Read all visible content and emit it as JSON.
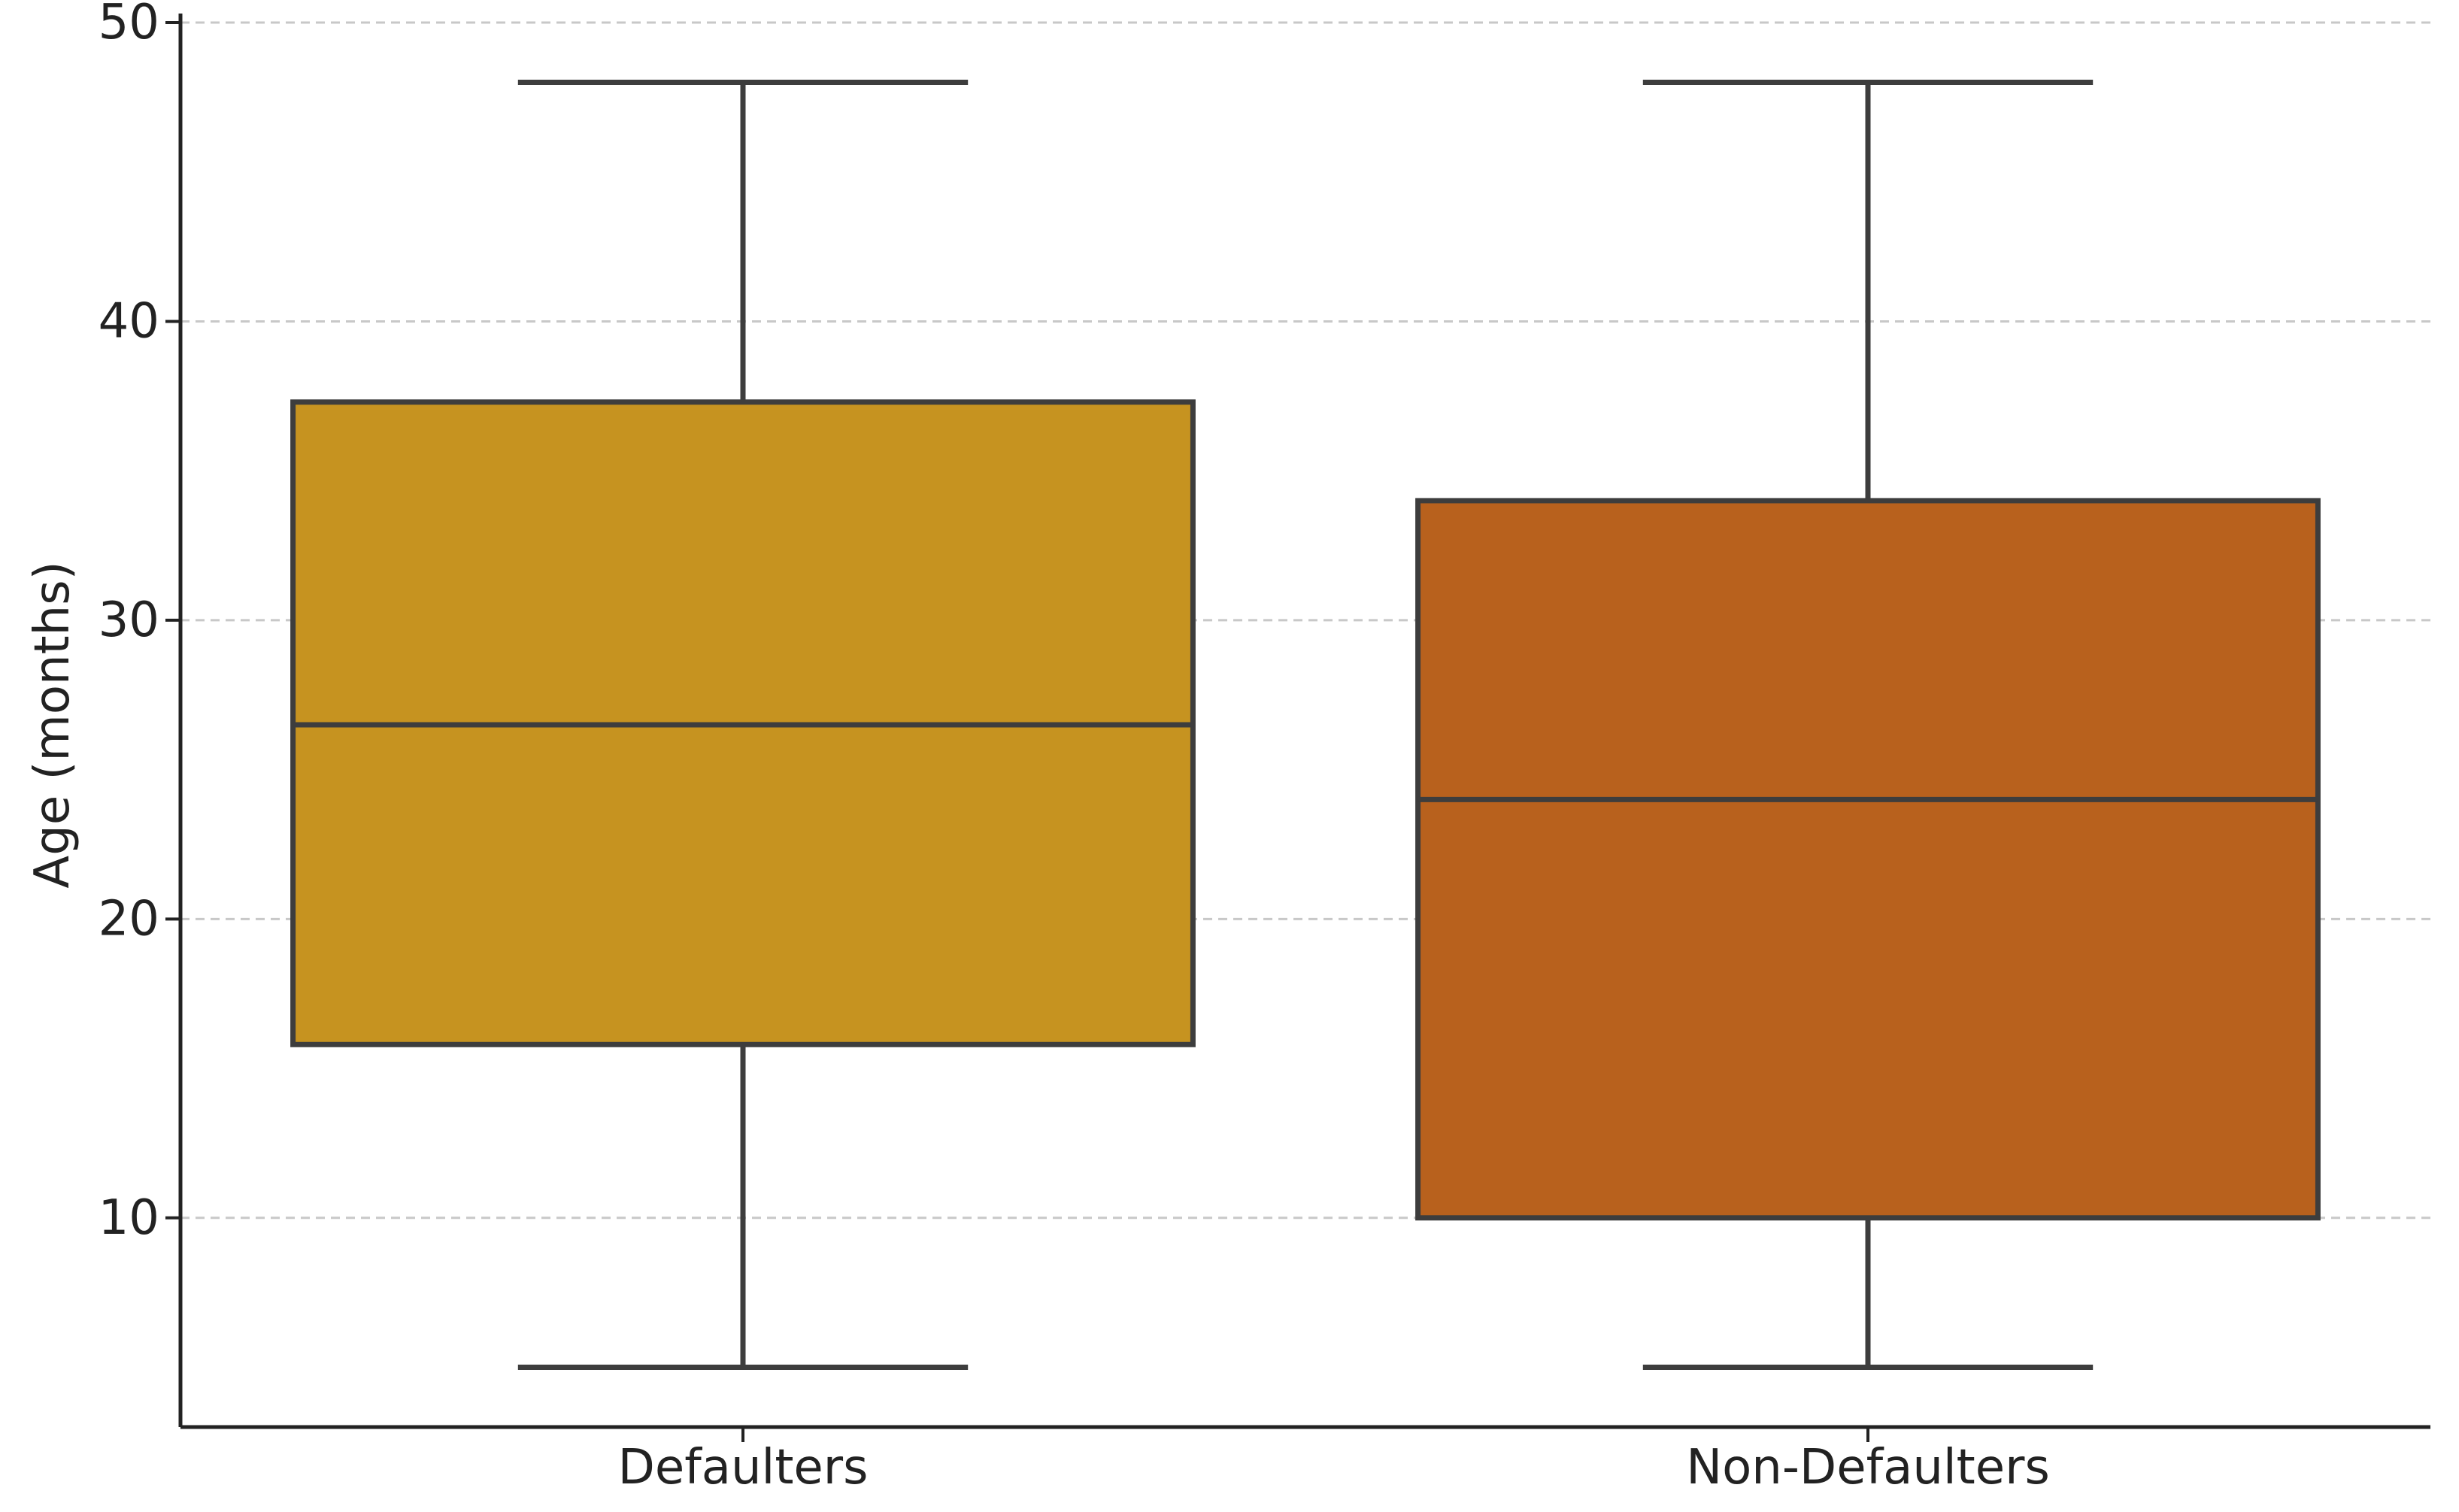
{
  "chart_data": {
    "type": "box",
    "ylabel": "Age (months)",
    "xlabel": "",
    "title": "",
    "ylim": [
      3,
      50
    ],
    "yticks": [
      10,
      20,
      30,
      40,
      50
    ],
    "grid": "horizontal-dashed",
    "categories": [
      "Defaulters",
      "Non-Defaulters"
    ],
    "boxes": [
      {
        "label": "Defaulters",
        "whisker_low": 5,
        "q1": 15.8,
        "median": 26.5,
        "q3": 37.3,
        "whisker_high": 48,
        "color": "#C69320"
      },
      {
        "label": "Non-Defaulters",
        "whisker_low": 5,
        "q1": 10,
        "median": 24,
        "q3": 34,
        "whisker_high": 48,
        "color": "#B8611D"
      }
    ]
  }
}
